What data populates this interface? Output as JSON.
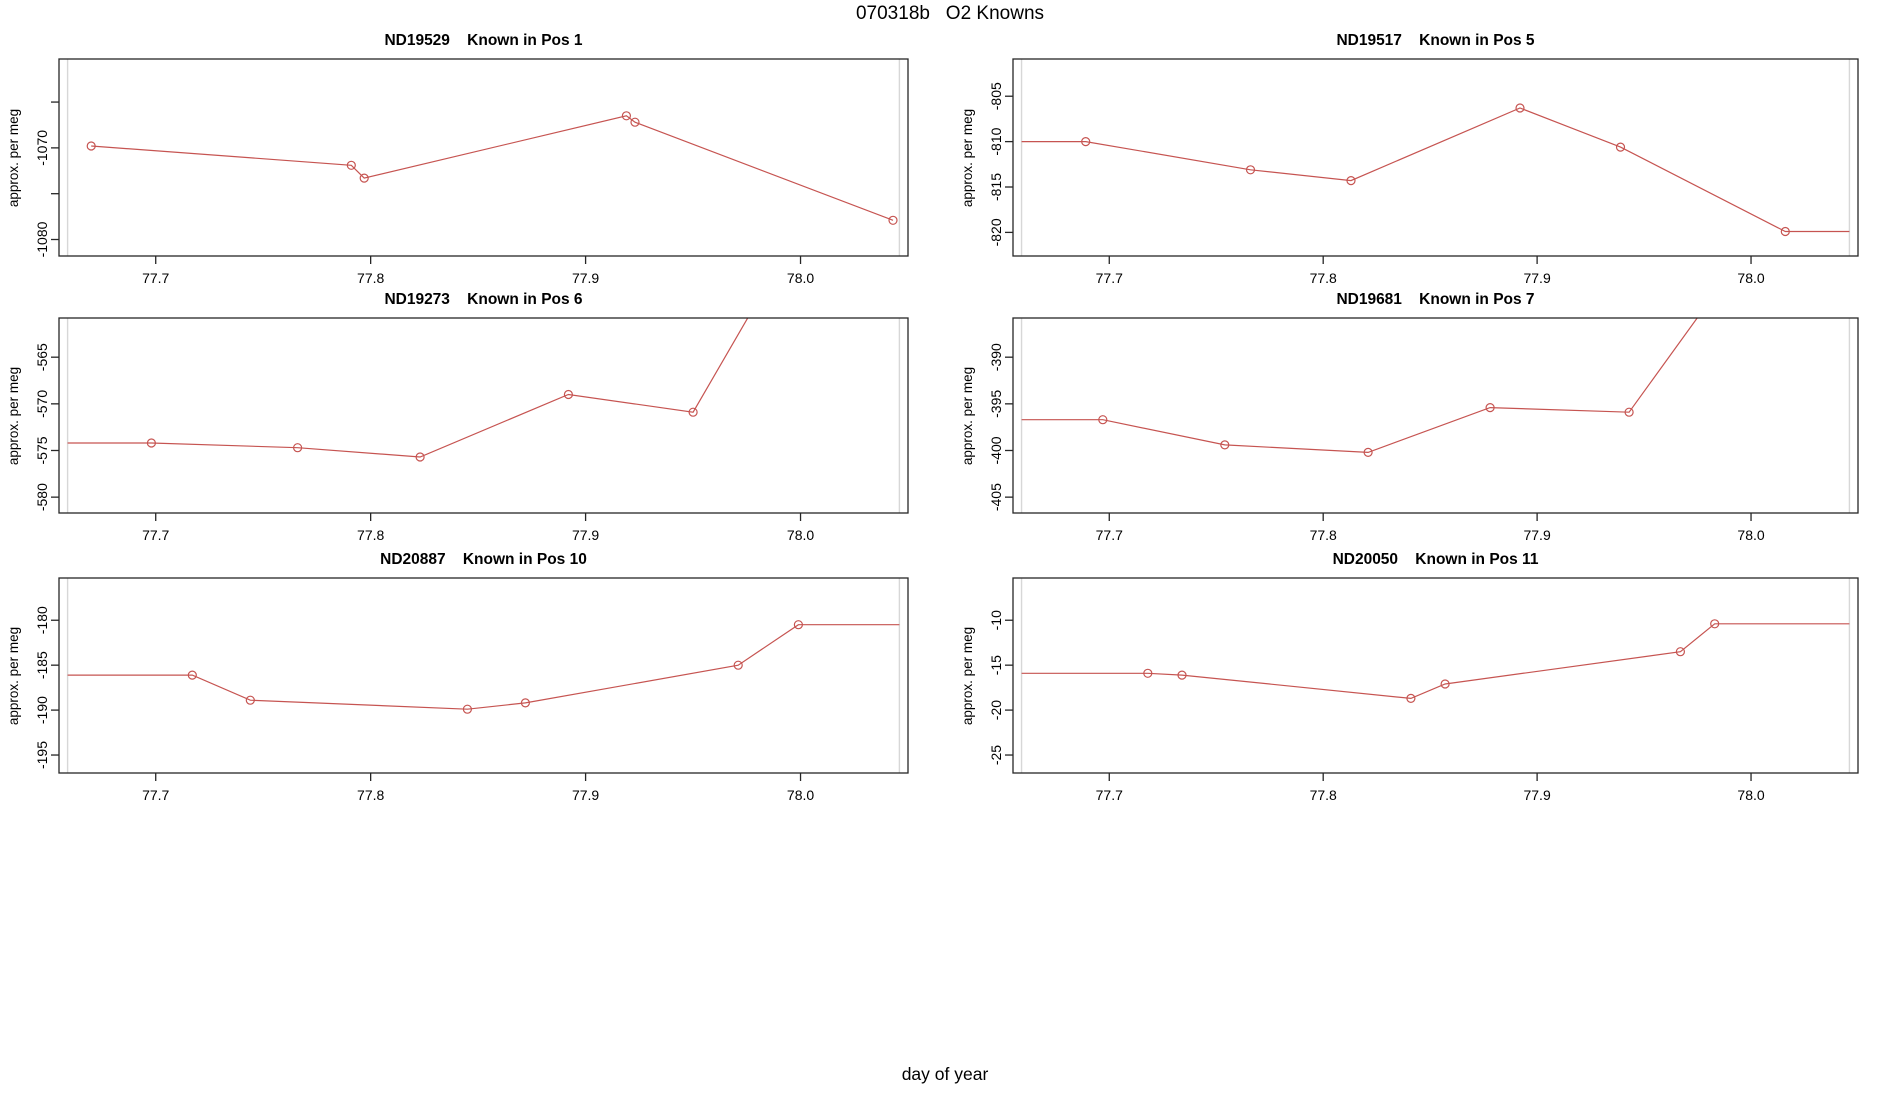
{
  "figure": {
    "title": "070318b   O2 Knowns",
    "xlabel": "day of year"
  },
  "palette": {
    "line": "#C65451",
    "axis": "#262626",
    "guide": "#d7d7d7",
    "text": "#000000"
  },
  "chart_data": [
    {
      "type": "line",
      "title": "ND19529    Known in Pos 1",
      "ylabel": "approx. per meg",
      "xlim": [
        77.655,
        78.05
      ],
      "ylim": [
        -1081.8,
        -1060.3
      ],
      "xticks": [
        77.7,
        77.8,
        77.9,
        78.0
      ],
      "xtick_labels": [
        "77.7",
        "77.8",
        "77.9",
        "78.0"
      ],
      "yticks": [
        -1065,
        -1070,
        -1075,
        -1080
      ],
      "ytick_labels": [
        "",
        "-1070",
        "",
        "-1080"
      ],
      "guides_x": [
        77.659,
        78.046
      ],
      "grid": false,
      "markers": [
        [
          77.67,
          -1069.8
        ],
        [
          77.791,
          -1071.9
        ],
        [
          77.797,
          -1073.3
        ],
        [
          77.919,
          -1066.5
        ],
        [
          77.923,
          -1067.2
        ],
        [
          78.043,
          -1077.9
        ]
      ],
      "line": [
        [
          77.67,
          -1069.8
        ],
        [
          77.791,
          -1071.9
        ],
        [
          77.797,
          -1073.3
        ],
        [
          77.919,
          -1066.5
        ],
        [
          77.923,
          -1067.2
        ],
        [
          78.043,
          -1077.9
        ]
      ]
    },
    {
      "type": "line",
      "title": "ND19517    Known in Pos 5",
      "ylabel": "approx. per meg",
      "xlim": [
        77.655,
        78.05
      ],
      "ylim": [
        -822.6,
        -800.9
      ],
      "xticks": [
        77.7,
        77.8,
        77.9,
        78.0
      ],
      "xtick_labels": [
        "77.7",
        "77.8",
        "77.9",
        "78.0"
      ],
      "yticks": [
        -805,
        -810,
        -815,
        -820
      ],
      "ytick_labels": [
        "-805",
        "-810",
        "-815",
        "-820"
      ],
      "guides_x": [
        77.659,
        78.046
      ],
      "grid": false,
      "markers": [
        [
          77.689,
          -810.0
        ],
        [
          77.766,
          -813.1
        ],
        [
          77.813,
          -814.3
        ],
        [
          77.892,
          -806.3
        ],
        [
          77.939,
          -810.6
        ],
        [
          78.016,
          -819.9
        ]
      ],
      "line": [
        [
          77.659,
          -810.0
        ],
        [
          77.689,
          -810.0
        ],
        [
          77.766,
          -813.1
        ],
        [
          77.813,
          -814.3
        ],
        [
          77.892,
          -806.3
        ],
        [
          77.939,
          -810.6
        ],
        [
          78.016,
          -819.9
        ],
        [
          78.046,
          -819.9
        ]
      ]
    },
    {
      "type": "line",
      "title": "ND19273    Known in Pos 6",
      "ylabel": "approx. per meg",
      "xlim": [
        77.655,
        78.05
      ],
      "ylim": [
        -581.7,
        -560.8
      ],
      "xticks": [
        77.7,
        77.8,
        77.9,
        78.0
      ],
      "xtick_labels": [
        "77.7",
        "77.8",
        "77.9",
        "78.0"
      ],
      "yticks": [
        -565,
        -570,
        -575,
        -580
      ],
      "ytick_labels": [
        "-565",
        "-570",
        "-575",
        "-580"
      ],
      "guides_x": [
        77.659,
        78.046
      ],
      "grid": false,
      "markers": [
        [
          77.698,
          -574.2
        ],
        [
          77.766,
          -574.7
        ],
        [
          77.823,
          -575.7
        ],
        [
          77.892,
          -569.0
        ],
        [
          77.95,
          -570.9
        ]
      ],
      "line": [
        [
          77.659,
          -574.2
        ],
        [
          77.698,
          -574.2
        ],
        [
          77.766,
          -574.7
        ],
        [
          77.823,
          -575.7
        ],
        [
          77.892,
          -569.0
        ],
        [
          77.95,
          -570.9
        ],
        [
          77.985,
          -557.0
        ]
      ]
    },
    {
      "type": "line",
      "title": "ND19681    Known in Pos 7",
      "ylabel": "approx. per meg",
      "xlim": [
        77.655,
        78.05
      ],
      "ylim": [
        -406.7,
        -385.8
      ],
      "xticks": [
        77.7,
        77.8,
        77.9,
        78.0
      ],
      "xtick_labels": [
        "77.7",
        "77.8",
        "77.9",
        "78.0"
      ],
      "yticks": [
        -390,
        -395,
        -400,
        -405
      ],
      "ytick_labels": [
        "-390",
        "-395",
        "-400",
        "-405"
      ],
      "guides_x": [
        77.659,
        78.046
      ],
      "grid": false,
      "markers": [
        [
          77.697,
          -396.7
        ],
        [
          77.754,
          -399.4
        ],
        [
          77.821,
          -400.2
        ],
        [
          77.878,
          -395.4
        ],
        [
          77.943,
          -395.9
        ]
      ],
      "line": [
        [
          77.659,
          -396.7
        ],
        [
          77.697,
          -396.7
        ],
        [
          77.754,
          -399.4
        ],
        [
          77.821,
          -400.2
        ],
        [
          77.878,
          -395.4
        ],
        [
          77.943,
          -395.9
        ],
        [
          77.99,
          -381.0
        ]
      ]
    },
    {
      "type": "line",
      "title": "ND20887    Known in Pos 10",
      "ylabel": "approx. per meg",
      "xlim": [
        77.655,
        78.05
      ],
      "ylim": [
        -197.0,
        -175.3
      ],
      "xticks": [
        77.7,
        77.8,
        77.9,
        78.0
      ],
      "xtick_labels": [
        "77.7",
        "77.8",
        "77.9",
        "78.0"
      ],
      "yticks": [
        -180,
        -185,
        -190,
        -195
      ],
      "ytick_labels": [
        "-180",
        "-185",
        "-190",
        "-195"
      ],
      "guides_x": [
        77.659,
        78.046
      ],
      "grid": false,
      "markers": [
        [
          77.717,
          -186.1
        ],
        [
          77.744,
          -188.9
        ],
        [
          77.845,
          -189.9
        ],
        [
          77.872,
          -189.2
        ],
        [
          77.971,
          -185.0
        ],
        [
          77.999,
          -180.5
        ]
      ],
      "line": [
        [
          77.659,
          -186.1
        ],
        [
          77.717,
          -186.1
        ],
        [
          77.744,
          -188.9
        ],
        [
          77.845,
          -189.9
        ],
        [
          77.872,
          -189.2
        ],
        [
          77.971,
          -185.0
        ],
        [
          77.999,
          -180.5
        ],
        [
          78.046,
          -180.5
        ]
      ]
    },
    {
      "type": "line",
      "title": "ND20050    Known in Pos 11",
      "ylabel": "approx. per meg",
      "xlim": [
        77.655,
        78.05
      ],
      "ylim": [
        -27.0,
        -5.3
      ],
      "xticks": [
        77.7,
        77.8,
        77.9,
        78.0
      ],
      "xtick_labels": [
        "77.7",
        "77.8",
        "77.9",
        "78.0"
      ],
      "yticks": [
        -10,
        -15,
        -20,
        -25
      ],
      "ytick_labels": [
        "-10",
        "-15",
        "-20",
        "-25"
      ],
      "guides_x": [
        77.659,
        78.046
      ],
      "grid": false,
      "markers": [
        [
          77.718,
          -15.9
        ],
        [
          77.734,
          -16.1
        ],
        [
          77.841,
          -18.7
        ],
        [
          77.857,
          -17.1
        ],
        [
          77.967,
          -13.5
        ],
        [
          77.983,
          -10.4
        ]
      ],
      "line": [
        [
          77.659,
          -15.9
        ],
        [
          77.718,
          -15.9
        ],
        [
          77.734,
          -16.1
        ],
        [
          77.841,
          -18.7
        ],
        [
          77.857,
          -17.1
        ],
        [
          77.967,
          -13.5
        ],
        [
          77.983,
          -10.4
        ],
        [
          78.046,
          -10.4
        ]
      ]
    }
  ]
}
